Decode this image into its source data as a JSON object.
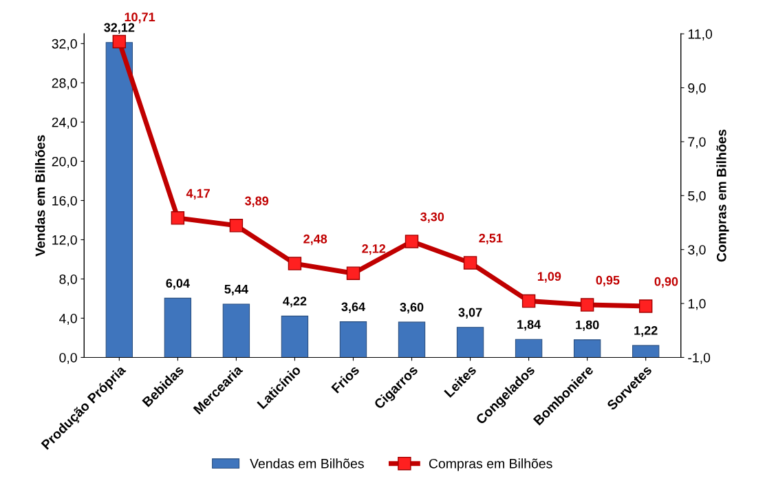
{
  "chart_data": {
    "type": "bar",
    "ylabel": "Vendas em Bilhões",
    "y2label": "Compras em Bilhões",
    "categories": [
      "Produção Própria",
      "Bebidas",
      "Mercearia",
      "Laticínio",
      "Frios",
      "Cigarros",
      "Leites",
      "Congelados",
      "Bomboniere",
      "Sorvetes"
    ],
    "series": [
      {
        "name": "Vendas em Bilhões",
        "color": "#3f75bd",
        "values": [
          32.12,
          6.04,
          5.44,
          4.22,
          3.64,
          3.6,
          3.07,
          1.84,
          1.8,
          1.22
        ],
        "value_labels": [
          "32,12",
          "6,04",
          "5,44",
          "4,22",
          "3,64",
          "3,60",
          "3,07",
          "1,84",
          "1,80",
          "1,22"
        ]
      },
      {
        "name": "Compras em Bilhões",
        "type": "line",
        "axis": "y2",
        "color": "#c00000",
        "marker": "square",
        "values": [
          10.71,
          4.17,
          3.89,
          2.48,
          2.12,
          3.3,
          2.51,
          1.09,
          0.95,
          0.9
        ],
        "value_labels": [
          "10,71",
          "4,17",
          "3,89",
          "2,48",
          "2,12",
          "3,30",
          "2,51",
          "1,09",
          "0,95",
          "0,90"
        ]
      }
    ],
    "ylim": [
      0,
      33
    ],
    "yticks": [
      {
        "value": 0,
        "label": "0,0"
      },
      {
        "value": 4,
        "label": "4,0"
      },
      {
        "value": 8,
        "label": "8,0"
      },
      {
        "value": 12,
        "label": "12,0"
      },
      {
        "value": 16,
        "label": "16,0"
      },
      {
        "value": 20,
        "label": "20,0"
      },
      {
        "value": 24,
        "label": "24,0"
      },
      {
        "value": 28,
        "label": "28,0"
      },
      {
        "value": 32,
        "label": "32,0"
      }
    ],
    "y2lim": [
      -1,
      11
    ],
    "y2ticks": [
      {
        "value": -1,
        "label": "-1,0"
      },
      {
        "value": 1,
        "label": "1,0"
      },
      {
        "value": 3,
        "label": "3,0"
      },
      {
        "value": 5,
        "label": "5,0"
      },
      {
        "value": 7,
        "label": "7,0"
      },
      {
        "value": 9,
        "label": "9,0"
      },
      {
        "value": 11,
        "label": "11,0"
      }
    ],
    "legend": "bottom",
    "grid": false
  }
}
